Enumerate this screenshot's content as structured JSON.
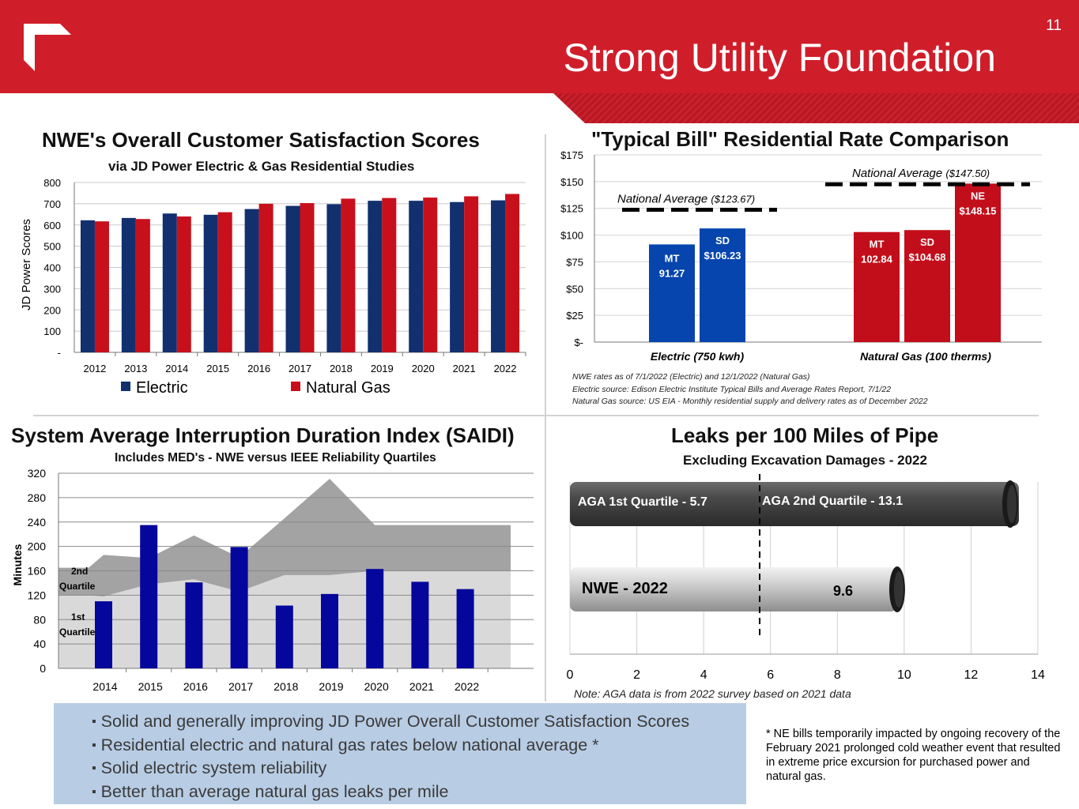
{
  "page": {
    "number": "11",
    "title": "Strong Utility Foundation"
  },
  "colors": {
    "header_red": "#cf1e2a",
    "electric_navy": "#12306e",
    "gas_red": "#c8101c",
    "rate_blue": "#0645ad",
    "rate_red": "#c20e1a",
    "saidi_bar": "#05069b"
  },
  "chart_data": [
    {
      "id": "satisfaction",
      "type": "bar",
      "title": "NWE's Overall Customer Satisfaction Scores",
      "subtitle": "via JD Power Electric & Gas Residential Studies",
      "ylabel": "JD Power Scores",
      "ylim": [
        0,
        800
      ],
      "yticks": [
        "-",
        "100",
        "200",
        "300",
        "400",
        "500",
        "600",
        "700",
        "800"
      ],
      "categories": [
        "2012",
        "2013",
        "2014",
        "2015",
        "2016",
        "2017",
        "2018",
        "2019",
        "2020",
        "2021",
        "2022"
      ],
      "series": [
        {
          "name": "Electric",
          "values": [
            622,
            633,
            654,
            648,
            675,
            690,
            698,
            714,
            714,
            708,
            716
          ]
        },
        {
          "name": "Natural Gas",
          "values": [
            617,
            628,
            640,
            660,
            700,
            703,
            724,
            727,
            729,
            735,
            746
          ]
        }
      ]
    },
    {
      "id": "typical-bill",
      "type": "bar",
      "title": "\"Typical Bill\" Residential Rate Comparison",
      "ylim": [
        0,
        175
      ],
      "yticks": [
        "$-",
        "$25",
        "$50",
        "$75",
        "$100",
        "$125",
        "$150",
        "$175"
      ],
      "groups": [
        {
          "name": "Electric (750 kwh)",
          "bars": [
            {
              "state": "MT",
              "label": "91.27",
              "value": 91.27
            },
            {
              "state": "SD",
              "label": "$106.23",
              "value": 106.23
            }
          ],
          "national_average": {
            "label": "National Average ",
            "value_label": "($123.67)",
            "value": 123.67
          }
        },
        {
          "name": "Natural Gas (100 therms)",
          "bars": [
            {
              "state": "MT",
              "label": "102.84",
              "value": 102.84
            },
            {
              "state": "SD",
              "label": "$104.68",
              "value": 104.68
            },
            {
              "state": "NE",
              "label": "$148.15",
              "value": 148.15
            }
          ],
          "national_average": {
            "label": "National Average ",
            "value_label": "($147.50)",
            "value": 147.5
          }
        }
      ],
      "notes": [
        "NWE rates as of 7/1/2022 (Electric) and 12/1/2022 (Natural Gas)",
        "Electric source:  Edison Electric Institute Typical Bills and Average Rates Report, 7/1/22",
        "Natural Gas source:  US EIA - Monthly residential supply and delivery rates as of December 2022"
      ]
    },
    {
      "id": "saidi",
      "type": "bar",
      "title": "System Average Interruption Duration Index (SAIDI)",
      "subtitle": "Includes MED's - NWE versus IEEE Reliability Quartiles",
      "ylabel": "Minutes",
      "ylim": [
        0,
        320
      ],
      "yticks": [
        "0",
        "40",
        "80",
        "120",
        "160",
        "200",
        "240",
        "280",
        "320"
      ],
      "categories": [
        "2014",
        "2015",
        "2016",
        "2017",
        "2018",
        "2019",
        "2020",
        "2021",
        "2022"
      ],
      "values": [
        110,
        235,
        141,
        199,
        103,
        122,
        163,
        142,
        130
      ],
      "area_labels": {
        "second": [
          "2nd",
          "Quartile"
        ],
        "first": [
          "1st",
          "Quartile"
        ]
      },
      "quartile_points": [
        0,
        0.4,
        1,
        2,
        3,
        4,
        5,
        6,
        7,
        8,
        8.4
      ],
      "first_quartile_top": [
        120,
        120,
        118,
        138,
        146,
        126,
        153,
        153,
        160,
        160,
        160
      ],
      "second_quartile_top": [
        165,
        165,
        186,
        181,
        218,
        182,
        246,
        311,
        235,
        235,
        235
      ]
    },
    {
      "id": "leaks",
      "type": "bar",
      "orientation": "horizontal",
      "title": "Leaks per 100 Miles of Pipe",
      "subtitle": "Excluding Excavation Damages - 2022",
      "xlim": [
        0,
        14
      ],
      "xticks": [
        "0",
        "2",
        "4",
        "6",
        "8",
        "10",
        "12",
        "14"
      ],
      "bars": [
        {
          "name": "AGA",
          "labels": [
            "AGA 1st  Quartile - 5.7",
            "AGA 2nd  Quartile - 13.1"
          ],
          "value": 13.1
        },
        {
          "name": "NWE - 2022",
          "value_label": "9.6",
          "value": 9.6
        }
      ],
      "reference_line": 5.7,
      "note": "Note:  AGA data is from 2022 survey based on 2021 data"
    }
  ],
  "summary": {
    "bullets": [
      "Solid and generally improving JD Power Overall Customer Satisfaction Scores",
      "Residential electric and natural gas rates below national average *",
      "Solid electric system reliability",
      "Better than average natural gas leaks per mile"
    ],
    "footnote": "* NE bills temporarily impacted by ongoing recovery of the February 2021 prolonged cold weather event that resulted in extreme price excursion for purchased power and natural gas."
  }
}
